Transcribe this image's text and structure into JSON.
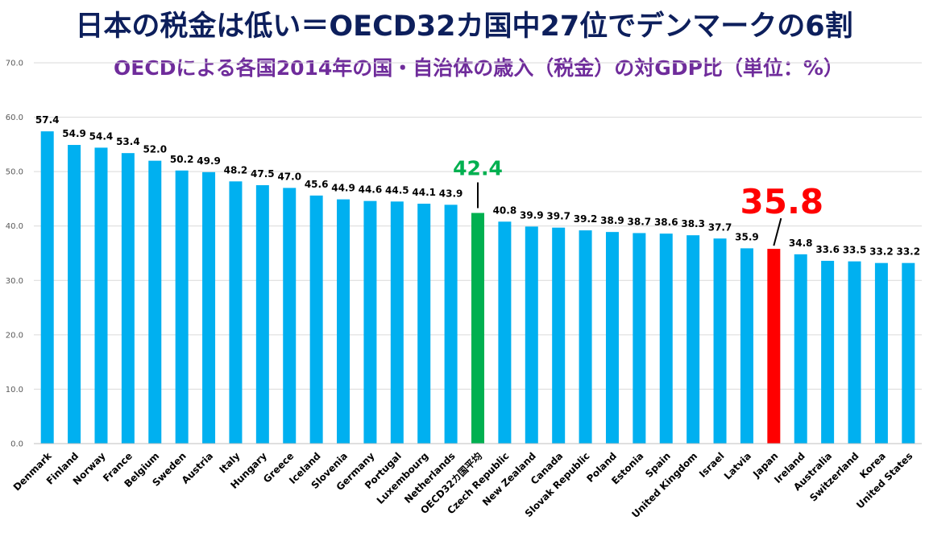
{
  "title": "日本の税金は低い＝OECD32カ国中27位でデンマークの6割",
  "subtitle": "OECDによる各国2014年の国・自治体の歳入（税金）の対GDP比（単位：%）",
  "chart_data": {
    "type": "bar",
    "title": "日本の税金は低い＝OECD32カ国中27位でデンマークの6割",
    "subtitle": "OECDによる各国2014年の国・自治体の歳入（税金）の対GDP比（単位：%）",
    "xlabel": "",
    "ylabel": "",
    "ylim": [
      0,
      70
    ],
    "yticks": [
      "0.0",
      "10.0",
      "20.0",
      "30.0",
      "40.0",
      "50.0",
      "60.0",
      "70.0"
    ],
    "grid": true,
    "legend": "none",
    "categories": [
      "Denmark",
      "Finland",
      "Norway",
      "France",
      "Belgium",
      "Sweden",
      "Austria",
      "Italy",
      "Hungary",
      "Greece",
      "Iceland",
      "Slovenia",
      "Germany",
      "Portugal",
      "Luxembourg",
      "Netherlands",
      "OECD32カ国平均",
      "Czech Republic",
      "New Zealand",
      "Canada",
      "Slovak Republic",
      "Poland",
      "Estonia",
      "Spain",
      "United Kingdom",
      "Israel",
      "Latvia",
      "Japan",
      "Ireland",
      "Australia",
      "Switzerland",
      "Korea",
      "United States"
    ],
    "values": [
      57.4,
      54.9,
      54.4,
      53.4,
      52.0,
      50.2,
      49.9,
      48.2,
      47.5,
      47.0,
      45.6,
      44.9,
      44.6,
      44.5,
      44.1,
      43.9,
      42.4,
      40.8,
      39.9,
      39.7,
      39.2,
      38.9,
      38.7,
      38.6,
      38.3,
      37.7,
      35.9,
      35.8,
      34.8,
      33.6,
      33.5,
      33.2,
      33.2
    ],
    "data_labels": [
      "57.4",
      "54.9",
      "54.4",
      "53.4",
      "52.0",
      "50.2",
      "49.9",
      "48.2",
      "47.5",
      "47.0",
      "45.6",
      "44.9",
      "44.6",
      "44.5",
      "44.1",
      "43.9",
      "42.4",
      "40.8",
      "39.9",
      "39.7",
      "39.2",
      "38.9",
      "38.7",
      "38.6",
      "38.3",
      "37.7",
      "35.9",
      "35.8",
      "34.8",
      "33.6",
      "33.5",
      "33.2",
      "33.2"
    ],
    "highlights": {
      "OECD32カ国平均": "#00b050",
      "Japan": "#ff0000"
    }
  },
  "colors": {
    "bar": "#00b0f0",
    "oecd": "#00b050",
    "japan": "#ff0000",
    "title": "#0d1f5c",
    "subtitle": "#6f2c9b"
  }
}
